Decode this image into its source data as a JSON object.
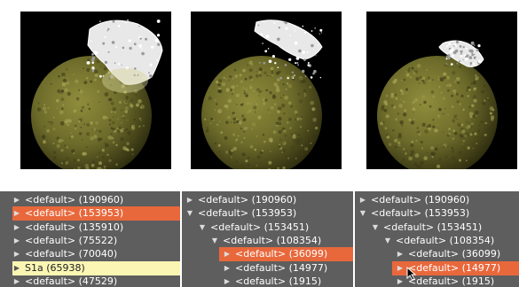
{
  "colors": {
    "panel_bg": "#5e5e5e",
    "selected_orange": "#e8683c",
    "highlight_yellow": "#fbf6b4",
    "render_bg": "#000000",
    "sphere_olive": "#6d6b2a",
    "fragment_white": "#e8e8e8"
  },
  "renders": [
    {
      "name": "render-viewport-1",
      "variant": "full"
    },
    {
      "name": "render-viewport-2",
      "variant": "partial"
    },
    {
      "name": "render-viewport-3",
      "variant": "small"
    }
  ],
  "trees": [
    {
      "name": "tree-panel-1",
      "rows": [
        {
          "label": "<default> (190960)",
          "depth": 0,
          "expanded": false,
          "state": "normal"
        },
        {
          "label": "<default> (153953)",
          "depth": 0,
          "expanded": false,
          "state": "selected"
        },
        {
          "label": "<default> (135910)",
          "depth": 0,
          "expanded": false,
          "state": "normal"
        },
        {
          "label": "<default> (75522)",
          "depth": 0,
          "expanded": false,
          "state": "normal"
        },
        {
          "label": "<default> (70040)",
          "depth": 0,
          "expanded": false,
          "state": "normal"
        },
        {
          "label": "S1a (65938)",
          "depth": 0,
          "expanded": false,
          "state": "highlighted"
        },
        {
          "label": "<default> (47529)",
          "depth": 0,
          "expanded": false,
          "state": "normal"
        }
      ]
    },
    {
      "name": "tree-panel-2",
      "rows": [
        {
          "label": "<default> (190960)",
          "depth": 0,
          "expanded": false,
          "state": "normal"
        },
        {
          "label": "<default> (153953)",
          "depth": 0,
          "expanded": true,
          "state": "normal"
        },
        {
          "label": "<default> (153451)",
          "depth": 1,
          "expanded": true,
          "state": "normal"
        },
        {
          "label": "<default> (108354)",
          "depth": 2,
          "expanded": true,
          "state": "normal"
        },
        {
          "label": "<default> (36099)",
          "depth": 3,
          "expanded": false,
          "state": "selected"
        },
        {
          "label": "<default> (14977)",
          "depth": 3,
          "expanded": false,
          "state": "normal"
        },
        {
          "label": "<default> (1915)",
          "depth": 3,
          "expanded": false,
          "state": "normal"
        }
      ]
    },
    {
      "name": "tree-panel-3",
      "rows": [
        {
          "label": "<default> (190960)",
          "depth": 0,
          "expanded": false,
          "state": "normal"
        },
        {
          "label": "<default> (153953)",
          "depth": 0,
          "expanded": true,
          "state": "normal"
        },
        {
          "label": "<default> (153451)",
          "depth": 1,
          "expanded": true,
          "state": "normal"
        },
        {
          "label": "<default> (108354)",
          "depth": 2,
          "expanded": true,
          "state": "normal"
        },
        {
          "label": "<default> (36099)",
          "depth": 3,
          "expanded": false,
          "state": "normal"
        },
        {
          "label": "<default> (14977)",
          "depth": 3,
          "expanded": false,
          "state": "selected"
        },
        {
          "label": "<default> (1915)",
          "depth": 3,
          "expanded": false,
          "state": "normal"
        }
      ]
    }
  ],
  "icons": {
    "collapsed": "▶",
    "expanded": "▼",
    "cursor": "mouse-pointer-icon"
  }
}
